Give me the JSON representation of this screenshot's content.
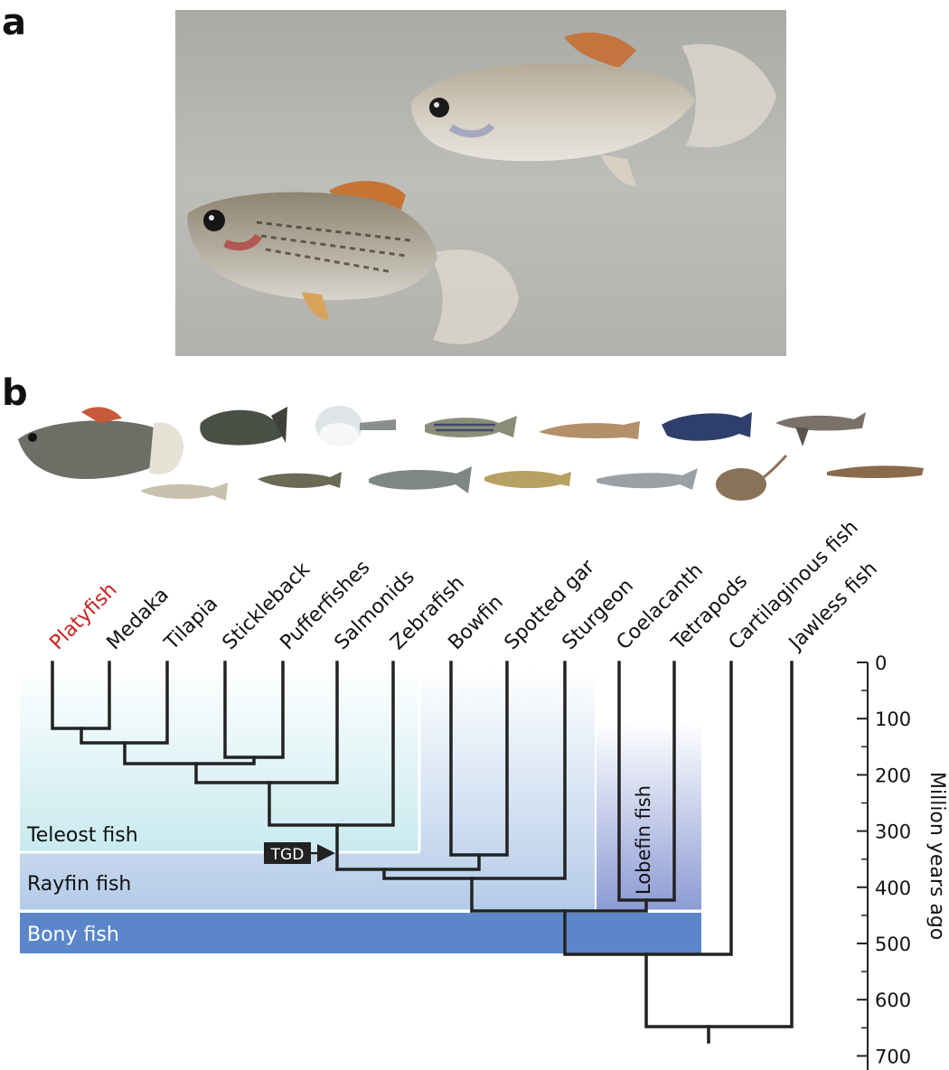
{
  "panels": {
    "a": "a",
    "b": "b"
  },
  "photo": {
    "background": "#b7b7b3"
  },
  "species": [
    {
      "label": "Platyfish",
      "highlight": true
    },
    {
      "label": "Medaka",
      "highlight": false
    },
    {
      "label": "Tilapia",
      "highlight": false
    },
    {
      "label": "Stickleback",
      "highlight": false
    },
    {
      "label": "Pufferfishes",
      "highlight": false
    },
    {
      "label": "Salmonids",
      "highlight": false
    },
    {
      "label": "Zebrafish",
      "highlight": false
    },
    {
      "label": "Bowfin",
      "highlight": false
    },
    {
      "label": "Spotted gar",
      "highlight": false
    },
    {
      "label": "Sturgeon",
      "highlight": false
    },
    {
      "label": "Coelacanth",
      "highlight": false
    },
    {
      "label": "Tetrapods",
      "highlight": false
    },
    {
      "label": "Cartilaginous fish",
      "highlight": false
    },
    {
      "label": "Jawless fish",
      "highlight": false
    }
  ],
  "groups": {
    "teleost": "Teleost fish",
    "rayfin": "Rayfin fish",
    "bony": "Bony fish",
    "lobefin": "Lobefin fish"
  },
  "event": {
    "label": "TGD"
  },
  "axis": {
    "title": "Million years ago",
    "ticks": [
      "0",
      "100",
      "200",
      "300",
      "400",
      "500",
      "600",
      "700"
    ]
  },
  "colors": {
    "highlight": "#cc1f1f",
    "tree": "#222222",
    "teleost": "#c8eaef",
    "rayfin": "#b3cbe8",
    "bony": "#5b86c9",
    "lobefin": "#8b9bd3"
  }
}
